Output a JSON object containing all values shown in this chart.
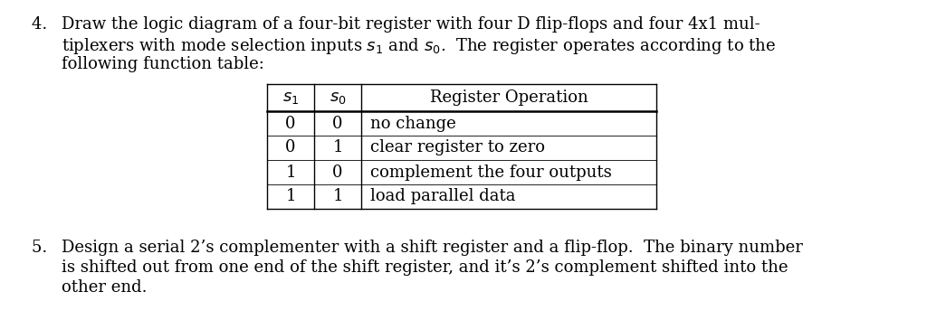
{
  "background_color": "#ffffff",
  "item4_lines": [
    [
      "4. ",
      "Draw the logic diagram of a four-bit register with four D flip-flops and four 4x1 mul-"
    ],
    [
      "",
      "tiplexers with mode selection inputs $s_1$ and $s_0$.  The register operates according to the"
    ],
    [
      "",
      "following function table:"
    ]
  ],
  "table_col_headers": [
    "$s_1$",
    "$s_0$",
    "Register Operation"
  ],
  "table_rows": [
    [
      "0",
      "0",
      "no change"
    ],
    [
      "0",
      "1",
      "clear register to zero"
    ],
    [
      "1",
      "0",
      "complement the four outputs"
    ],
    [
      "1",
      "1",
      "load parallel data"
    ]
  ],
  "item5_lines": [
    [
      "5. ",
      "Design a serial 2’s complementer with a shift register and a flip-flop.  The binary number"
    ],
    [
      "",
      "is shifted out from one end of the shift register, and it’s 2’s complement shifted into the"
    ],
    [
      "",
      "other end."
    ]
  ],
  "font_size": 13.0,
  "font_family": "DejaVu Serif"
}
